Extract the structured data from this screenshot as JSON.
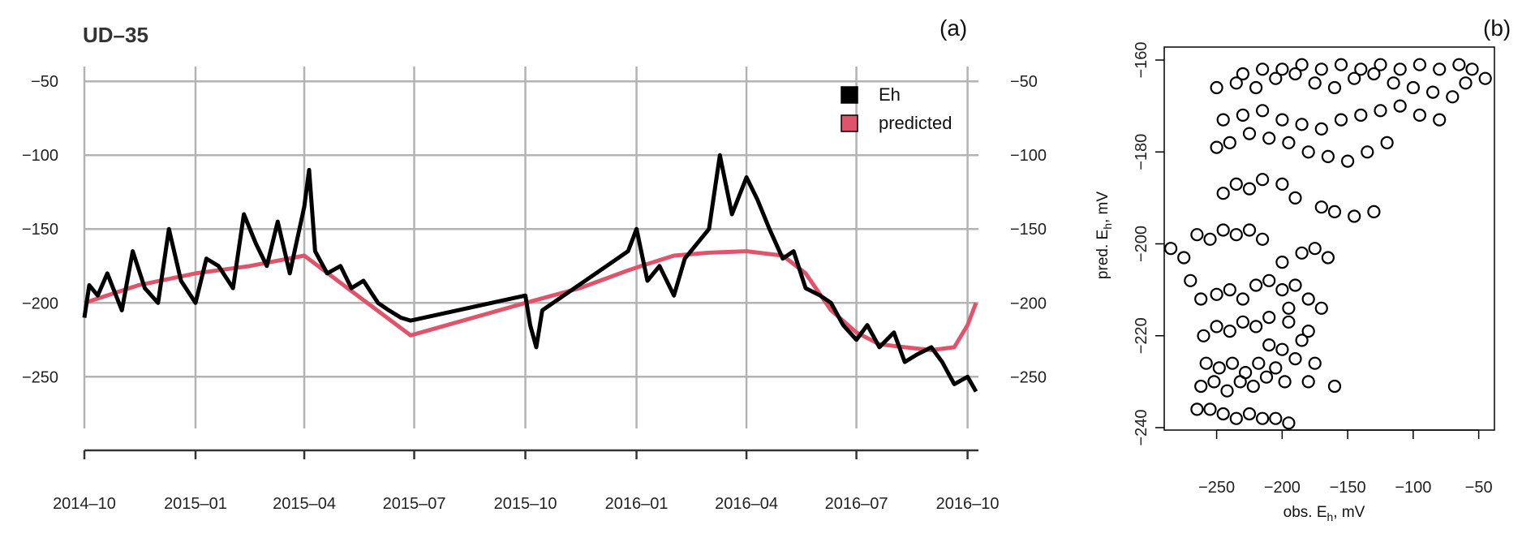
{
  "chart_data": [
    {
      "panel": "a",
      "panel_tag": "(a)",
      "type": "line",
      "title": "UD–35",
      "xlabel": "",
      "ylabel": "",
      "x_tick_labels": [
        "2014–10",
        "2015–01",
        "2015–04",
        "2015–07",
        "2015–10",
        "2016–01",
        "2016–04",
        "2016–07",
        "2016–10"
      ],
      "x_tick_dates": [
        "2014-10-01",
        "2015-01-01",
        "2015-04-01",
        "2015-07-01",
        "2015-10-01",
        "2016-01-01",
        "2016-04-01",
        "2016-07-01",
        "2016-10-01"
      ],
      "y_tick_values": [
        -250,
        -200,
        -150,
        -100,
        -50
      ],
      "y_tick_labels": [
        "−250",
        "−200",
        "−150",
        "−100",
        "−50"
      ],
      "ylim": [
        -285,
        -40
      ],
      "xlim": [
        "2014-10-01",
        "2016-10-10"
      ],
      "grid": true,
      "legend_position": "top-right",
      "series": [
        {
          "name": "Eh",
          "color": "#000000",
          "x": [
            "2014-10-01",
            "2014-10-05",
            "2014-10-12",
            "2014-10-20",
            "2014-11-01",
            "2014-11-10",
            "2014-11-20",
            "2014-12-01",
            "2014-12-10",
            "2014-12-20",
            "2015-01-01",
            "2015-01-10",
            "2015-01-20",
            "2015-02-01",
            "2015-02-10",
            "2015-02-20",
            "2015-03-01",
            "2015-03-10",
            "2015-03-20",
            "2015-04-01",
            "2015-04-05",
            "2015-04-10",
            "2015-04-20",
            "2015-05-01",
            "2015-05-10",
            "2015-05-20",
            "2015-06-01",
            "2015-06-10",
            "2015-06-20",
            "2015-06-28",
            "2015-10-01",
            "2015-10-05",
            "2015-10-10",
            "2015-10-15",
            "2015-12-25",
            "2016-01-01",
            "2016-01-10",
            "2016-01-20",
            "2016-02-01",
            "2016-02-10",
            "2016-02-20",
            "2016-03-01",
            "2016-03-10",
            "2016-03-20",
            "2016-04-01",
            "2016-04-10",
            "2016-04-20",
            "2016-05-01",
            "2016-05-10",
            "2016-05-20",
            "2016-06-01",
            "2016-06-10",
            "2016-06-20",
            "2016-07-01",
            "2016-07-10",
            "2016-07-20",
            "2016-08-01",
            "2016-08-10",
            "2016-08-20",
            "2016-09-01",
            "2016-09-10",
            "2016-09-20",
            "2016-10-01",
            "2016-10-08"
          ],
          "y": [
            -210,
            -188,
            -195,
            -180,
            -205,
            -165,
            -190,
            -200,
            -150,
            -185,
            -200,
            -170,
            -175,
            -190,
            -140,
            -160,
            -175,
            -145,
            -180,
            -135,
            -110,
            -165,
            -180,
            -175,
            -190,
            -185,
            -200,
            -205,
            -210,
            -212,
            -195,
            -215,
            -230,
            -205,
            -165,
            -150,
            -185,
            -175,
            -195,
            -170,
            -160,
            -150,
            -100,
            -140,
            -115,
            -130,
            -150,
            -170,
            -165,
            -190,
            -195,
            -200,
            -215,
            -225,
            -215,
            -230,
            -220,
            -240,
            -235,
            -230,
            -240,
            -255,
            -250,
            -260
          ]
        },
        {
          "name": "predicted",
          "color": "#df536b",
          "x": [
            "2014-10-01",
            "2014-11-15",
            "2015-01-01",
            "2015-02-15",
            "2015-04-01",
            "2015-05-15",
            "2015-06-28",
            "2015-10-01",
            "2015-11-15",
            "2015-12-25",
            "2016-01-05",
            "2016-02-01",
            "2016-03-01",
            "2016-04-01",
            "2016-05-01",
            "2016-05-20",
            "2016-06-10",
            "2016-07-01",
            "2016-07-20",
            "2016-08-10",
            "2016-09-01",
            "2016-09-20",
            "2016-10-01",
            "2016-10-08"
          ],
          "y": [
            -200,
            -188,
            -180,
            -175,
            -168,
            -195,
            -222,
            -200,
            -190,
            -178,
            -175,
            -168,
            -166,
            -165,
            -168,
            -180,
            -205,
            -220,
            -228,
            -230,
            -232,
            -230,
            -215,
            -200
          ]
        }
      ]
    },
    {
      "panel": "b",
      "panel_tag": "(b)",
      "type": "scatter",
      "xlabel": "obs. E",
      "xlabel_sub": "h",
      "xlabel_unit": ", mV",
      "ylabel": "pred. E",
      "ylabel_sub": "h",
      "ylabel_unit": ", mV",
      "x_tick_values": [
        -250,
        -200,
        -150,
        -100,
        -50
      ],
      "x_tick_labels": [
        "−250",
        "−200",
        "−150",
        "−100",
        "−50"
      ],
      "y_tick_values": [
        -240,
        -220,
        -200,
        -180,
        -160
      ],
      "y_tick_labels": [
        "−240",
        "−220",
        "−200",
        "−180",
        "−160"
      ],
      "xlim": [
        -290,
        -38
      ],
      "ylim": [
        -240,
        -160
      ],
      "marker": "open-circle",
      "color": "#000000",
      "points": [
        {
          "x": -285,
          "y": -201
        },
        {
          "x": -275,
          "y": -203
        },
        {
          "x": -265,
          "y": -198
        },
        {
          "x": -255,
          "y": -199
        },
        {
          "x": -245,
          "y": -197
        },
        {
          "x": -235,
          "y": -198
        },
        {
          "x": -225,
          "y": -197
        },
        {
          "x": -215,
          "y": -199
        },
        {
          "x": -270,
          "y": -208
        },
        {
          "x": -262,
          "y": -212
        },
        {
          "x": -250,
          "y": -211
        },
        {
          "x": -240,
          "y": -210
        },
        {
          "x": -230,
          "y": -212
        },
        {
          "x": -220,
          "y": -209
        },
        {
          "x": -210,
          "y": -208
        },
        {
          "x": -200,
          "y": -210
        },
        {
          "x": -190,
          "y": -209
        },
        {
          "x": -260,
          "y": -220
        },
        {
          "x": -250,
          "y": -218
        },
        {
          "x": -240,
          "y": -219
        },
        {
          "x": -230,
          "y": -217
        },
        {
          "x": -220,
          "y": -218
        },
        {
          "x": -210,
          "y": -216
        },
        {
          "x": -195,
          "y": -217
        },
        {
          "x": -180,
          "y": -219
        },
        {
          "x": -258,
          "y": -226
        },
        {
          "x": -248,
          "y": -227
        },
        {
          "x": -238,
          "y": -226
        },
        {
          "x": -228,
          "y": -228
        },
        {
          "x": -218,
          "y": -226
        },
        {
          "x": -205,
          "y": -227
        },
        {
          "x": -190,
          "y": -225
        },
        {
          "x": -175,
          "y": -226
        },
        {
          "x": -262,
          "y": -231
        },
        {
          "x": -252,
          "y": -230
        },
        {
          "x": -242,
          "y": -232
        },
        {
          "x": -232,
          "y": -230
        },
        {
          "x": -222,
          "y": -231
        },
        {
          "x": -212,
          "y": -229
        },
        {
          "x": -198,
          "y": -230
        },
        {
          "x": -180,
          "y": -230
        },
        {
          "x": -160,
          "y": -231
        },
        {
          "x": -265,
          "y": -236
        },
        {
          "x": -255,
          "y": -236
        },
        {
          "x": -245,
          "y": -237
        },
        {
          "x": -235,
          "y": -238
        },
        {
          "x": -225,
          "y": -237
        },
        {
          "x": -215,
          "y": -238
        },
        {
          "x": -205,
          "y": -238
        },
        {
          "x": -195,
          "y": -239
        },
        {
          "x": -245,
          "y": -189
        },
        {
          "x": -235,
          "y": -187
        },
        {
          "x": -225,
          "y": -188
        },
        {
          "x": -215,
          "y": -186
        },
        {
          "x": -200,
          "y": -187
        },
        {
          "x": -190,
          "y": -190
        },
        {
          "x": -170,
          "y": -192
        },
        {
          "x": -160,
          "y": -193
        },
        {
          "x": -145,
          "y": -194
        },
        {
          "x": -130,
          "y": -193
        },
        {
          "x": -250,
          "y": -179
        },
        {
          "x": -240,
          "y": -178
        },
        {
          "x": -225,
          "y": -176
        },
        {
          "x": -210,
          "y": -177
        },
        {
          "x": -195,
          "y": -178
        },
        {
          "x": -180,
          "y": -180
        },
        {
          "x": -165,
          "y": -181
        },
        {
          "x": -150,
          "y": -182
        },
        {
          "x": -135,
          "y": -180
        },
        {
          "x": -120,
          "y": -178
        },
        {
          "x": -245,
          "y": -173
        },
        {
          "x": -230,
          "y": -172
        },
        {
          "x": -215,
          "y": -171
        },
        {
          "x": -200,
          "y": -173
        },
        {
          "x": -185,
          "y": -174
        },
        {
          "x": -170,
          "y": -175
        },
        {
          "x": -155,
          "y": -173
        },
        {
          "x": -140,
          "y": -172
        },
        {
          "x": -125,
          "y": -171
        },
        {
          "x": -110,
          "y": -170
        },
        {
          "x": -95,
          "y": -172
        },
        {
          "x": -80,
          "y": -173
        },
        {
          "x": -250,
          "y": -166
        },
        {
          "x": -235,
          "y": -165
        },
        {
          "x": -220,
          "y": -166
        },
        {
          "x": -205,
          "y": -164
        },
        {
          "x": -190,
          "y": -163
        },
        {
          "x": -175,
          "y": -165
        },
        {
          "x": -160,
          "y": -166
        },
        {
          "x": -145,
          "y": -164
        },
        {
          "x": -130,
          "y": -163
        },
        {
          "x": -115,
          "y": -165
        },
        {
          "x": -100,
          "y": -166
        },
        {
          "x": -85,
          "y": -167
        },
        {
          "x": -70,
          "y": -168
        },
        {
          "x": -230,
          "y": -163
        },
        {
          "x": -215,
          "y": -162
        },
        {
          "x": -200,
          "y": -162
        },
        {
          "x": -185,
          "y": -161
        },
        {
          "x": -170,
          "y": -162
        },
        {
          "x": -155,
          "y": -161
        },
        {
          "x": -140,
          "y": -162
        },
        {
          "x": -125,
          "y": -161
        },
        {
          "x": -110,
          "y": -162
        },
        {
          "x": -95,
          "y": -161
        },
        {
          "x": -80,
          "y": -162
        },
        {
          "x": -65,
          "y": -161
        },
        {
          "x": -55,
          "y": -162
        },
        {
          "x": -45,
          "y": -164
        },
        {
          "x": -60,
          "y": -165
        },
        {
          "x": -200,
          "y": -204
        },
        {
          "x": -185,
          "y": -202
        },
        {
          "x": -175,
          "y": -201
        },
        {
          "x": -165,
          "y": -203
        },
        {
          "x": -195,
          "y": -214
        },
        {
          "x": -180,
          "y": -212
        },
        {
          "x": -170,
          "y": -214
        },
        {
          "x": -210,
          "y": -222
        },
        {
          "x": -200,
          "y": -223
        },
        {
          "x": -185,
          "y": -221
        }
      ]
    }
  ]
}
